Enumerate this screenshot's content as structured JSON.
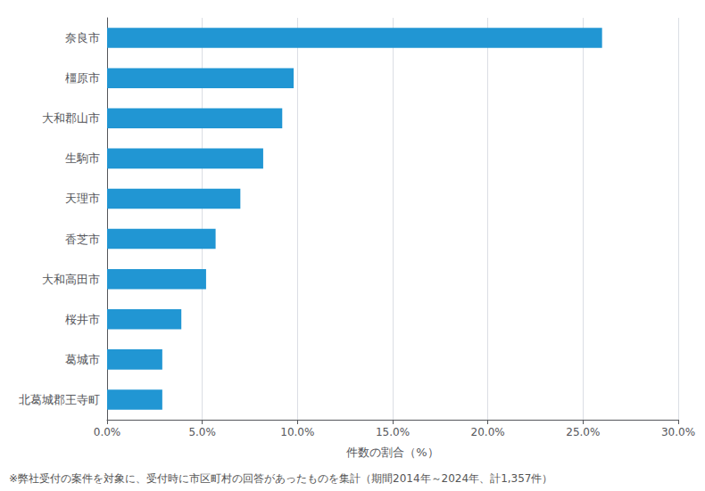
{
  "chart_data": {
    "type": "bar",
    "orientation": "horizontal",
    "categories": [
      "奈良市",
      "橿原市",
      "大和郡山市",
      "生駒市",
      "天理市",
      "香芝市",
      "大和高田市",
      "桜井市",
      "葛城市",
      "北葛城郡王寺町"
    ],
    "values": [
      26.0,
      9.8,
      9.2,
      8.2,
      7.0,
      5.7,
      5.2,
      3.9,
      2.9,
      2.9
    ],
    "color": "#2196d3",
    "xlabel": "件数の割合（%）",
    "xlim": [
      0,
      30.0
    ],
    "xticks": [
      {
        "value": 0,
        "label": "0.0%"
      },
      {
        "value": 5,
        "label": "5.0%"
      },
      {
        "value": 10,
        "label": "10.0%"
      },
      {
        "value": 15,
        "label": "15.0%"
      },
      {
        "value": 20,
        "label": "20.0%"
      },
      {
        "value": 25,
        "label": "25.0%"
      },
      {
        "value": 30,
        "label": "30.0%"
      }
    ],
    "grid": true,
    "annotations": [
      "※弊社受付の案件を対象に、受付時に市区町村の回答があったものを集計（期間2014年～2024年、計1,357件）"
    ]
  }
}
